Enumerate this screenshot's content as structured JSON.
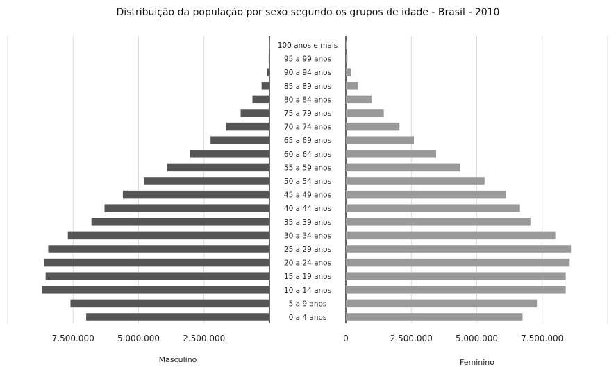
{
  "chart_data": {
    "type": "bar",
    "orientation": "horizontal",
    "title": "Distribuição da população por sexo segundo os grupos de idade - Brasil - 2010",
    "categories": [
      "0 a 4 anos",
      "5 a 9 anos",
      "10 a 14 anos",
      "15 a 19 anos",
      "20 a 24 anos",
      "25 a 29 anos",
      "30 a 34 anos",
      "35 a 39 anos",
      "40 a 44 anos",
      "45 a 49 anos",
      "50 a 54 anos",
      "55 a 59 anos",
      "60 a 64 anos",
      "65 a 69 anos",
      "70 a 74 anos",
      "75 a 79 anos",
      "80 a 84 anos",
      "85 a 89 anos",
      "90 a 94 anos",
      "95 a 99 anos",
      "100 anos e mais"
    ],
    "series": [
      {
        "name": "Masculino",
        "color": "#555555",
        "values": [
          7000000,
          7600000,
          8700000,
          8550000,
          8600000,
          8450000,
          7700000,
          6800000,
          6300000,
          5600000,
          4800000,
          3900000,
          3050000,
          2250000,
          1650000,
          1100000,
          650000,
          300000,
          100000,
          30000,
          5000
        ]
      },
      {
        "name": "Feminino",
        "color": "#999999",
        "values": [
          6750000,
          7300000,
          8400000,
          8400000,
          8550000,
          8600000,
          8000000,
          7050000,
          6650000,
          6100000,
          5300000,
          4350000,
          3450000,
          2600000,
          2050000,
          1450000,
          980000,
          470000,
          190000,
          60000,
          15000
        ]
      }
    ],
    "left_axis": {
      "ticks": [
        7500000,
        5000000,
        2500000
      ],
      "tick_labels": [
        "7.500.000",
        "5.000.000",
        "2.500.000"
      ]
    },
    "right_axis": {
      "ticks": [
        0,
        2500000,
        5000000,
        7500000
      ],
      "tick_labels": [
        "0",
        "2.500.000",
        "5.000.000",
        "7.500.000"
      ]
    },
    "xlim": [
      0,
      10000000
    ],
    "left_label": "Masculino",
    "right_label": "Feminino",
    "grid": true
  }
}
